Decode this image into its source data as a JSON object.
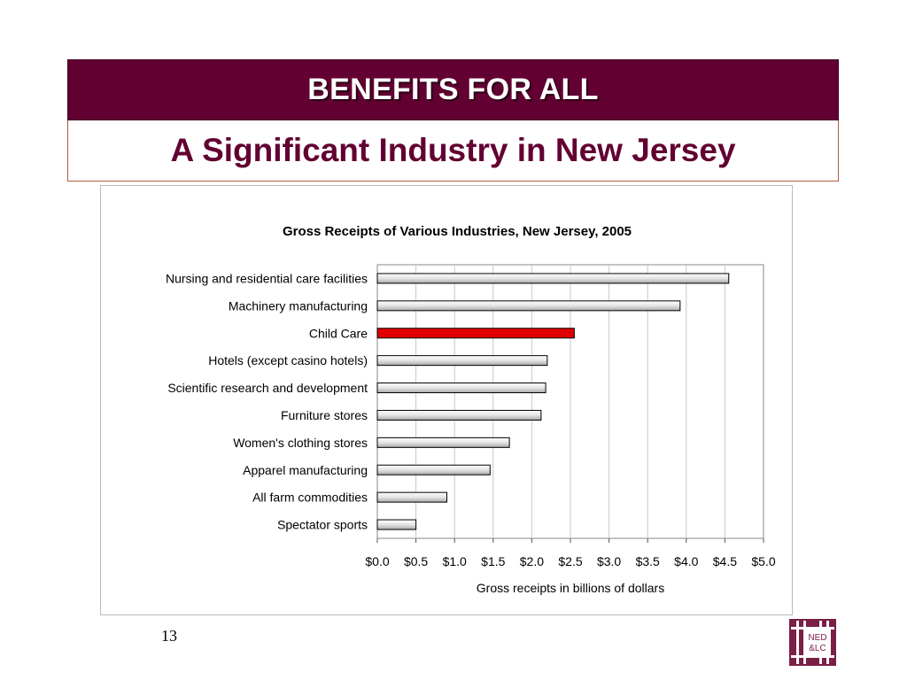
{
  "slide": {
    "title": "BENEFITS FOR ALL",
    "subtitle": "A Significant Industry in New Jersey",
    "page_number": "13",
    "logo_text": [
      "NED",
      "&LC"
    ]
  },
  "colors": {
    "title_band": "#620032",
    "subtitle_text": "#620032",
    "highlight_bar": "#e00000",
    "bar_fill": "#e4e4e4"
  },
  "chart_data": {
    "type": "bar",
    "orientation": "horizontal",
    "title": "Gross Receipts of Various Industries, New Jersey, 2005",
    "xlabel": "Gross receipts in billions of dollars",
    "ylabel": "",
    "xlim": [
      0,
      5
    ],
    "x_ticks": [
      "$0.0",
      "$0.5",
      "$1.0",
      "$1.5",
      "$2.0",
      "$2.5",
      "$3.0",
      "$3.5",
      "$4.0",
      "$4.5",
      "$5.0"
    ],
    "grid": true,
    "highlight": "Child Care",
    "categories": [
      "Nursing and residential care facilities",
      "Machinery manufacturing",
      "Child Care",
      "Hotels (except casino hotels)",
      "Scientific research and development",
      "Furniture stores",
      "Women's clothing stores",
      "Apparel manufacturing",
      "All farm commodities",
      "Spectator sports"
    ],
    "values": [
      4.55,
      3.92,
      2.55,
      2.2,
      2.18,
      2.12,
      1.71,
      1.46,
      0.9,
      0.5
    ]
  }
}
